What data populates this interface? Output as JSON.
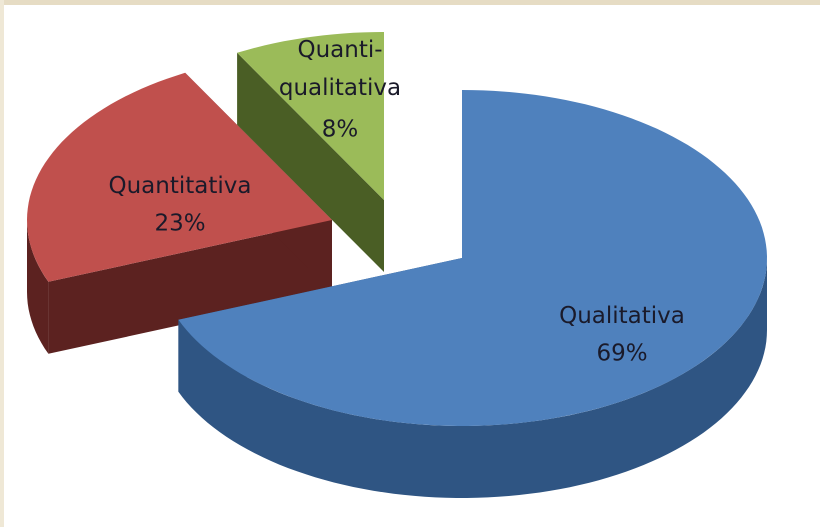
{
  "chart_data": {
    "type": "pie3d",
    "categories": [
      "Qualitativa",
      "Quantitativa",
      "Quanti-qualitativa"
    ],
    "values": [
      69,
      23,
      8
    ],
    "value_labels": [
      "69%",
      "23%",
      "8%"
    ],
    "colors": [
      "#4f81bd",
      "#c0504d",
      "#9bbb59"
    ],
    "side_colors": [
      "#2f5583",
      "#5c2220",
      "#4a5e25"
    ]
  }
}
